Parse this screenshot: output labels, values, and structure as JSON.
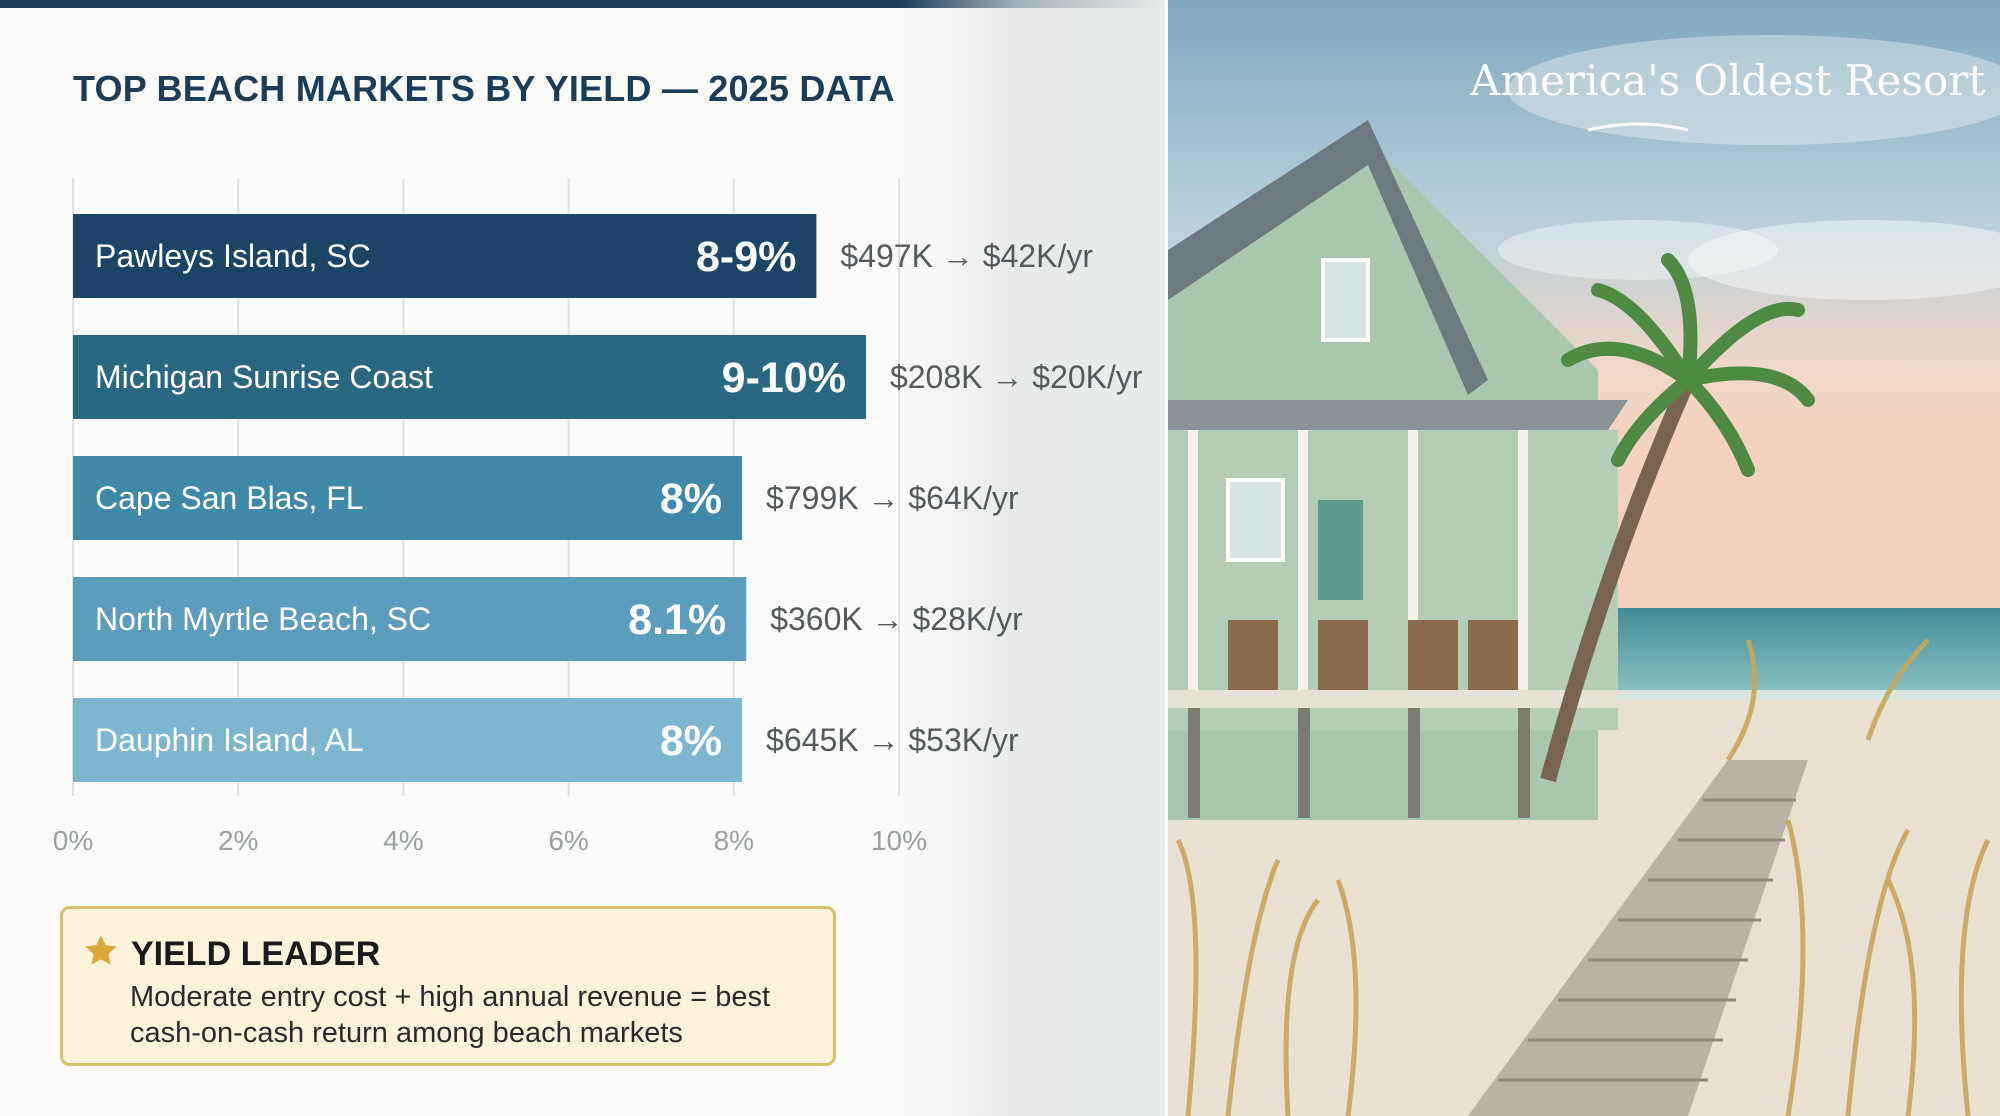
{
  "title": "TOP BEACH MARKETS BY YIELD — 2025 DATA",
  "chart_data": {
    "type": "bar",
    "orientation": "horizontal",
    "xlim": [
      0,
      10
    ],
    "x_ticks": [
      "0%",
      "2%",
      "4%",
      "6%",
      "8%",
      "10%"
    ],
    "grid": "vertical",
    "categories": [
      "Pawleys Island, SC",
      "Michigan Sunrise Coast",
      "Cape San Blas, FL",
      "North Myrtle Beach, SC",
      "Dauphin Island, AL"
    ],
    "values": [
      9,
      9.6,
      8.1,
      8.15,
      8.1
    ],
    "value_labels": [
      "8-9%",
      "9-10%",
      "8%",
      "8.1%",
      "8%"
    ],
    "annotations": [
      "$497K → $42K/yr",
      "$208K → $20K/yr",
      "$799K → $64K/yr",
      "$360K → $28K/yr",
      "$645K → $53K/yr"
    ],
    "bar_colors": [
      "#1c4466",
      "#2a6882",
      "#3f88a8",
      "#5c9cbd",
      "#7eb6cf"
    ]
  },
  "callout": {
    "title": "YIELD LEADER",
    "body": "Moderate entry cost + high annual revenue = best cash-on-cash return among beach markets",
    "icon": "star-icon",
    "accent": "#d9a93a"
  },
  "photo": {
    "tagline": "America's Oldest Resort"
  }
}
